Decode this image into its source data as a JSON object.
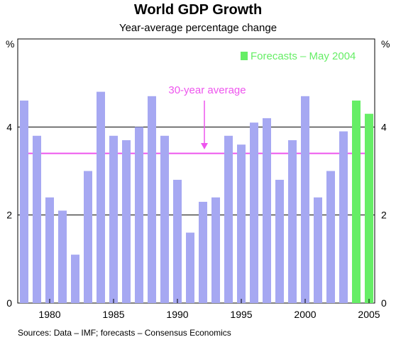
{
  "title": "World GDP Growth",
  "subtitle": "Year-average percentage change",
  "y_unit_left": "%",
  "y_unit_right": "%",
  "source": "Sources: Data – IMF; forecasts – Consensus Economics",
  "colors": {
    "actual": "#a6a8f2",
    "forecast": "#66ee66",
    "average": "#ee55ee",
    "grid": "#000000"
  },
  "chart_data": {
    "type": "bar",
    "title": "World GDP Growth",
    "subtitle": "Year-average percentage change",
    "xlabel": "",
    "ylabel": "%",
    "ylim": [
      0,
      6
    ],
    "yticks": [
      0,
      2,
      4
    ],
    "grid": true,
    "x_tick_labels": [
      "1980",
      "1985",
      "1990",
      "1995",
      "2000",
      "2005"
    ],
    "categories": [
      1978,
      1979,
      1980,
      1981,
      1982,
      1983,
      1984,
      1985,
      1986,
      1987,
      1988,
      1989,
      1990,
      1991,
      1992,
      1993,
      1994,
      1995,
      1996,
      1997,
      1998,
      1999,
      2000,
      2001,
      2002,
      2003,
      2004,
      2005
    ],
    "series": [
      {
        "name": "",
        "values": [
          4.6,
          3.8,
          2.4,
          2.1,
          1.1,
          3.0,
          4.8,
          3.8,
          3.7,
          4.0,
          4.7,
          3.8,
          2.8,
          1.6,
          2.3,
          2.4,
          3.8,
          3.6,
          4.1,
          4.2,
          2.8,
          3.7,
          4.7,
          2.4,
          3.0,
          3.9,
          null,
          null
        ]
      },
      {
        "name": "Forecasts – May 2004",
        "values": [
          null,
          null,
          null,
          null,
          null,
          null,
          null,
          null,
          null,
          null,
          null,
          null,
          null,
          null,
          null,
          null,
          null,
          null,
          null,
          null,
          null,
          null,
          null,
          null,
          null,
          null,
          4.6,
          4.3
        ]
      }
    ],
    "average": {
      "label": "30-year average",
      "value": 3.4
    },
    "legend": {
      "label": "Forecasts – May 2004",
      "placement": "top-right"
    }
  }
}
